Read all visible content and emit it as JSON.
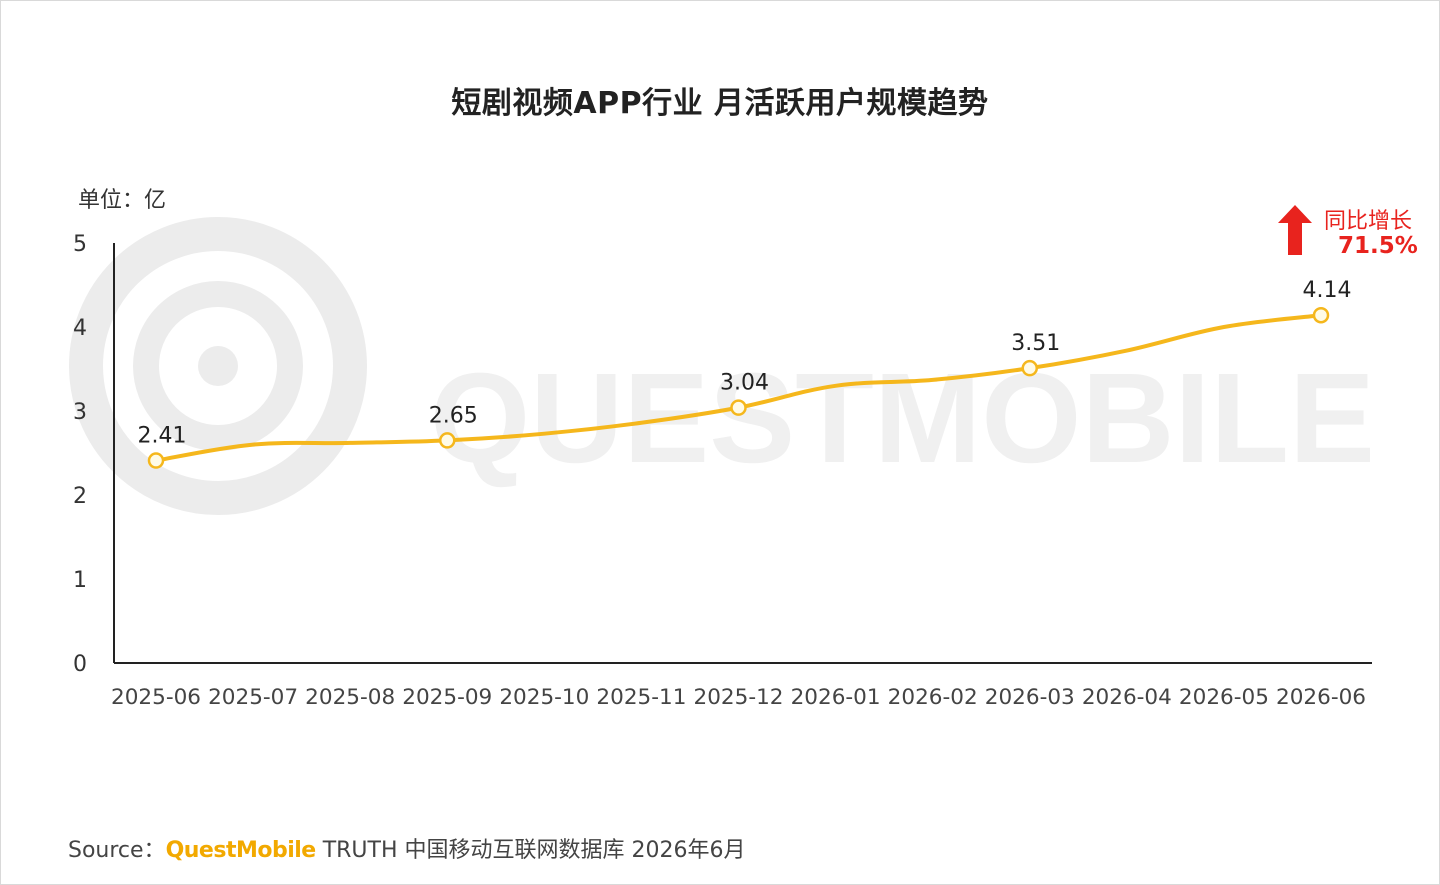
{
  "chart_data": {
    "type": "line",
    "title": "短剧视频APP行业 月活跃用户规模趋势",
    "unit_label": "单位：亿",
    "categories": [
      "2025-06",
      "2025-07",
      "2025-08",
      "2025-09",
      "2025-10",
      "2025-11",
      "2025-12",
      "2026-01",
      "2026-02",
      "2026-03",
      "2026-04",
      "2026-05",
      "2026-06"
    ],
    "series": [
      {
        "values": [
          2.41,
          2.6,
          2.62,
          2.65,
          2.73,
          2.86,
          3.04,
          3.3,
          3.37,
          3.51,
          3.72,
          4.0,
          4.14
        ],
        "labeled_points": {
          "0": "2.41",
          "3": "2.65",
          "6": "3.04",
          "9": "3.51",
          "12": "4.14"
        }
      }
    ],
    "yticks": [
      "0",
      "1",
      "2",
      "3",
      "4",
      "5"
    ],
    "ylim": [
      0,
      5
    ],
    "grid": false,
    "line_color": "#f5b71c",
    "marker_fill": "#fffbe6",
    "annotation": {
      "label": "同比增长",
      "value": "71.5%",
      "color": "#e8231e",
      "icon": "up-arrow-icon"
    }
  },
  "watermark": "QUESTMOBILE",
  "source": {
    "prefix": "Source：",
    "brand": "QuestMobile",
    "suffix": " TRUTH 中国移动互联网数据库 2026年6月"
  }
}
